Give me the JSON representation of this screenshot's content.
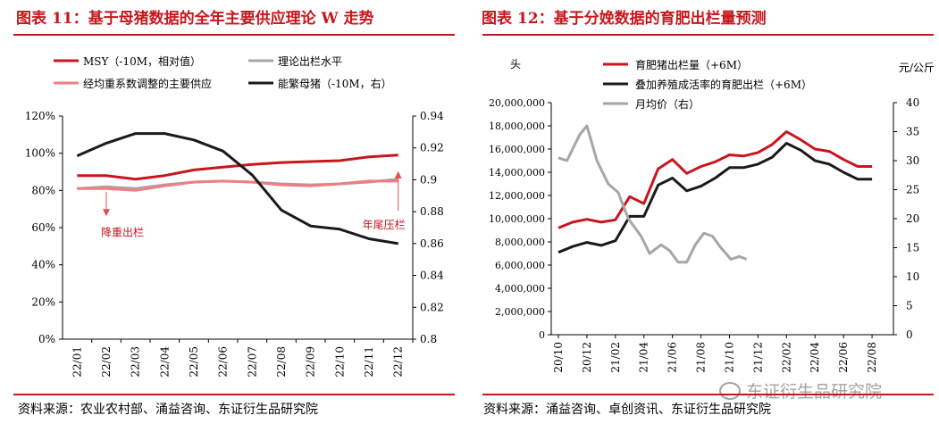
{
  "left": {
    "title": "图表 11：基于母猪数据的全年主要供应理论 W 走势",
    "source": "资料来源：农业农村部、涌益咨询、东证衍生品研究院",
    "chart_data": {
      "type": "line",
      "categories": [
        "22/01",
        "22/02",
        "22/03",
        "22/04",
        "22/05",
        "22/06",
        "22/07",
        "22/08",
        "22/09",
        "22/10",
        "22/11",
        "22/12"
      ],
      "left_axis": {
        "ylim": [
          0,
          120
        ],
        "ticks": [
          "0%",
          "20%",
          "40%",
          "60%",
          "80%",
          "100%",
          "120%"
        ]
      },
      "right_axis": {
        "ylim": [
          0.8,
          0.94
        ],
        "ticks": [
          "0.8",
          "0.82",
          "0.84",
          "0.86",
          "0.88",
          "0.9",
          "0.92",
          "0.94"
        ]
      },
      "legend": [
        "MSY（-10M，相对值）",
        "理论出栏水平",
        "经均重系数调整的主要供应",
        "能繁母猪（-10M，右）"
      ],
      "series": [
        {
          "name": "MSY（-10M，相对值）",
          "axis": "left",
          "color": "#c8161d",
          "values": [
            88,
            88,
            86,
            88,
            91,
            92.5,
            94,
            95,
            95.5,
            96,
            98,
            99
          ]
        },
        {
          "name": "理论出栏水平",
          "axis": "left",
          "color": "#a6a6a6",
          "values": [
            81,
            82,
            81,
            83,
            84.5,
            85,
            84.5,
            83.5,
            83,
            83.5,
            84.5,
            86
          ]
        },
        {
          "name": "经均重系数调整的主要供应",
          "axis": "left",
          "color": "#ef7e84",
          "values": [
            81,
            81,
            80,
            82.5,
            84.5,
            85,
            84.5,
            83,
            82.5,
            83.5,
            85,
            85
          ]
        },
        {
          "name": "能繁母猪（-10M，右）",
          "axis": "right",
          "color": "#1a1a1a",
          "values": [
            0.915,
            0.923,
            0.929,
            0.929,
            0.925,
            0.918,
            0.903,
            0.881,
            0.871,
            0.869,
            0.863,
            0.86
          ]
        }
      ],
      "annotations": [
        {
          "text": "降重出栏",
          "category_index": 1,
          "value": 80.5,
          "direction": "down"
        },
        {
          "text": "年尾压栏",
          "category_index": 11,
          "value": 85.5,
          "direction": "up"
        }
      ]
    }
  },
  "right": {
    "title": "图表 12：基于分娩数据的育肥出栏量预测",
    "source": "资料来源：涌益咨询、卓创资讯、东证衍生品研究院",
    "watermark": "东证衍生品研究院",
    "chart_data": {
      "type": "line",
      "categories": [
        "20/10",
        "20/12",
        "21/02",
        "21/04",
        "21/06",
        "21/08",
        "21/10",
        "21/12",
        "22/02",
        "22/04",
        "22/06",
        "22/08"
      ],
      "left_axis": {
        "unit": "头",
        "ylim": [
          0,
          20000000
        ],
        "ticks": [
          "0",
          "2,000,000",
          "4,000,000",
          "6,000,000",
          "8,000,000",
          "10,000,000",
          "12,000,000",
          "14,000,000",
          "16,000,000",
          "18,000,000",
          "20,000,000"
        ]
      },
      "right_axis": {
        "unit": "元/公斤",
        "ylim": [
          0,
          40
        ],
        "ticks": [
          "0",
          "5",
          "10",
          "15",
          "20",
          "25",
          "30",
          "35",
          "40"
        ]
      },
      "legend": [
        "育肥猪出栏量（+6M）",
        "叠加养殖成活率的育肥出栏（+6M）",
        "月均价（右）"
      ],
      "series": [
        {
          "name": "育肥猪出栏量（+6M）",
          "axis": "left",
          "color": "#c8161d",
          "x": [
            0,
            1,
            2,
            3,
            4,
            5,
            6,
            7,
            8,
            9,
            10,
            11,
            12,
            13,
            14,
            15,
            16,
            17,
            18,
            19,
            20,
            21,
            22
          ],
          "values": [
            9200000,
            9700000,
            9950000,
            9700000,
            9900000,
            11900000,
            11300000,
            14300000,
            15100000,
            13900000,
            14500000,
            14900000,
            15500000,
            15400000,
            15700000,
            16400000,
            17500000,
            16800000,
            16000000,
            15800000,
            15100000,
            14500000,
            14500000
          ]
        },
        {
          "name": "叠加养殖成活率的育肥出栏（+6M）",
          "axis": "left",
          "color": "#1a1a1a",
          "x": [
            0,
            1,
            2,
            3,
            4,
            5,
            6,
            7,
            8,
            9,
            10,
            11,
            12,
            13,
            14,
            15,
            16,
            17,
            18,
            19,
            20,
            21,
            22
          ],
          "values": [
            7100000,
            7600000,
            7950000,
            7700000,
            8100000,
            10200000,
            10200000,
            12900000,
            13500000,
            12400000,
            12800000,
            13500000,
            14400000,
            14400000,
            14700000,
            15300000,
            16500000,
            15900000,
            15000000,
            14700000,
            14000000,
            13400000,
            13400000
          ]
        },
        {
          "name": "月均价（右）",
          "axis": "right",
          "color": "#a6a6a6",
          "x": [
            0,
            0.6,
            1,
            1.5,
            2,
            2.7,
            3.5,
            4.2,
            4.9,
            5.8,
            6.4,
            7.2,
            7.8,
            8.4,
            9,
            9.6,
            10.2,
            10.8,
            11.4,
            12.1,
            12.7,
            13.2
          ],
          "values": [
            30.5,
            30,
            32,
            34.5,
            36,
            30,
            26,
            24.5,
            20,
            17,
            14,
            15.5,
            14.5,
            12.5,
            12.5,
            15.5,
            17.5,
            17,
            15,
            13,
            13.5,
            13
          ]
        }
      ]
    }
  }
}
